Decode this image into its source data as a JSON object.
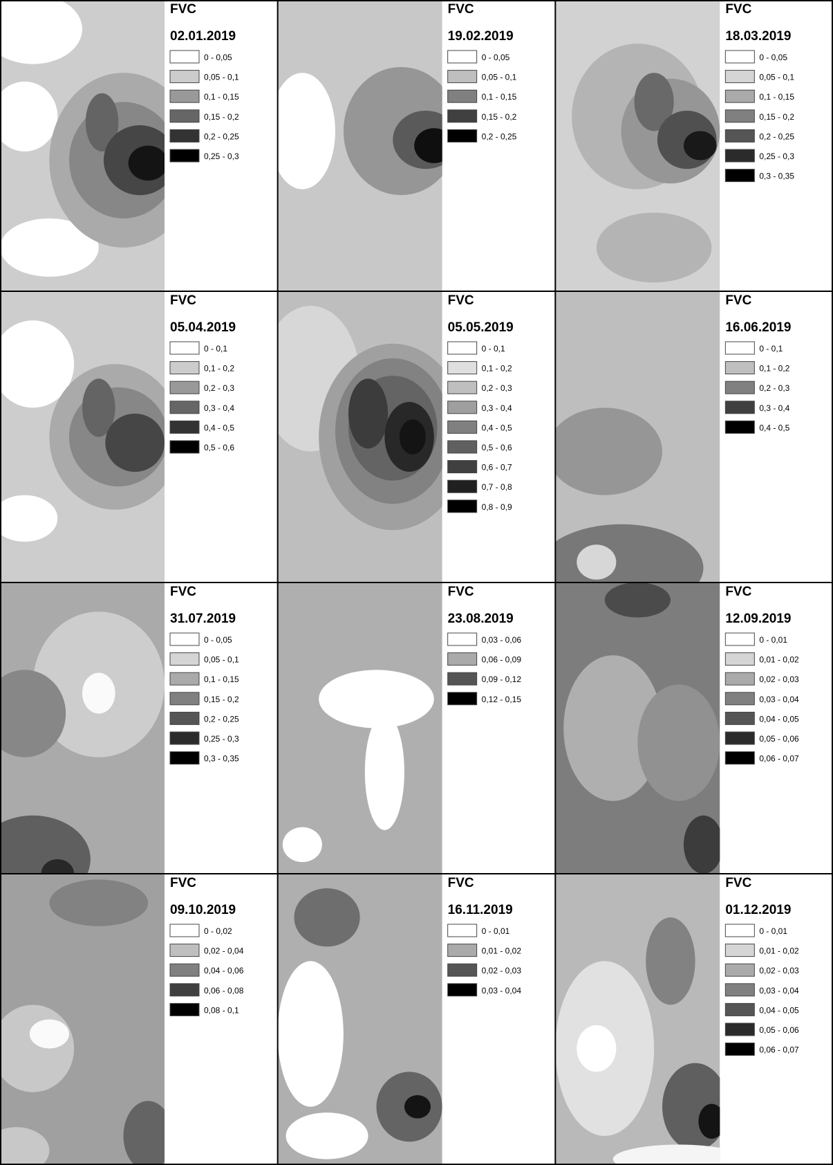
{
  "panels": [
    {
      "title": "FVC",
      "date": "02.01.2019",
      "legend": [
        "0 - 0,05",
        "0,05 - 0,1",
        "0,1 - 0,15",
        "0,15 - 0,2",
        "0,2 - 0,25",
        "0,25 - 0,3"
      ]
    },
    {
      "title": "FVC",
      "date": "19.02.2019",
      "legend": [
        "0 - 0,05",
        "0,05 - 0,1",
        "0,1 - 0,15",
        "0,15 - 0,2",
        "0,2 - 0,25"
      ]
    },
    {
      "title": "FVC",
      "date": "18.03.2019",
      "legend": [
        "0 - 0,05",
        "0,05 - 0,1",
        "0,1 - 0,15",
        "0,15 - 0,2",
        "0,2 - 0,25",
        "0,25 - 0,3",
        "0,3 - 0,35"
      ]
    },
    {
      "title": "FVC",
      "date": "05.04.2019",
      "legend": [
        "0 - 0,1",
        "0,1 - 0,2",
        "0,2 - 0,3",
        "0,3 - 0,4",
        "0,4 - 0,5",
        "0,5 - 0,6"
      ]
    },
    {
      "title": "FVC",
      "date": "05.05.2019",
      "legend": [
        "0 - 0,1",
        "0,1 - 0,2",
        "0,2 - 0,3",
        "0,3 - 0,4",
        "0,4 - 0,5",
        "0,5 - 0,6",
        "0,6 - 0,7",
        "0,7 - 0,8",
        "0,8 - 0,9"
      ]
    },
    {
      "title": "FVC",
      "date": "16.06.2019",
      "legend": [
        "0 - 0,1",
        "0,1 - 0,2",
        "0,2 - 0,3",
        "0,3 - 0,4",
        "0,4 - 0,5"
      ]
    },
    {
      "title": "FVC",
      "date": "31.07.2019",
      "legend": [
        "0 - 0,05",
        "0,05 - 0,1",
        "0,1 - 0,15",
        "0,15 - 0,2",
        "0,2 - 0,25",
        "0,25 - 0,3",
        "0,3 - 0,35"
      ]
    },
    {
      "title": "FVC",
      "date": "23.08.2019",
      "legend": [
        "0,03 - 0,06",
        "0,06 - 0,09",
        "0,09 - 0,12",
        "0,12 - 0,15"
      ]
    },
    {
      "title": "FVC",
      "date": "12.09.2019",
      "legend": [
        "0 - 0,01",
        "0,01 - 0,02",
        "0,02 - 0,03",
        "0,03 - 0,04",
        "0,04 - 0,05",
        "0,05 - 0,06",
        "0,06 - 0,07"
      ]
    },
    {
      "title": "FVC",
      "date": "09.10.2019",
      "legend": [
        "0 - 0,02",
        "0,02 - 0,04",
        "0,04 - 0,06",
        "0,06 - 0,08",
        "0,08 - 0,1"
      ]
    },
    {
      "title": "FVC",
      "date": "16.11.2019",
      "legend": [
        "0 - 0,01",
        "0,01 - 0,02",
        "0,02 - 0,03",
        "0,03 - 0,04"
      ]
    },
    {
      "title": "FVC",
      "date": "01.12.2019",
      "legend": [
        "0 - 0,01",
        "0,01 - 0,02",
        "0,02 - 0,03",
        "0,03 - 0,04",
        "0,04 - 0,05",
        "0,05 - 0,06",
        "0,06 - 0,07"
      ]
    }
  ]
}
